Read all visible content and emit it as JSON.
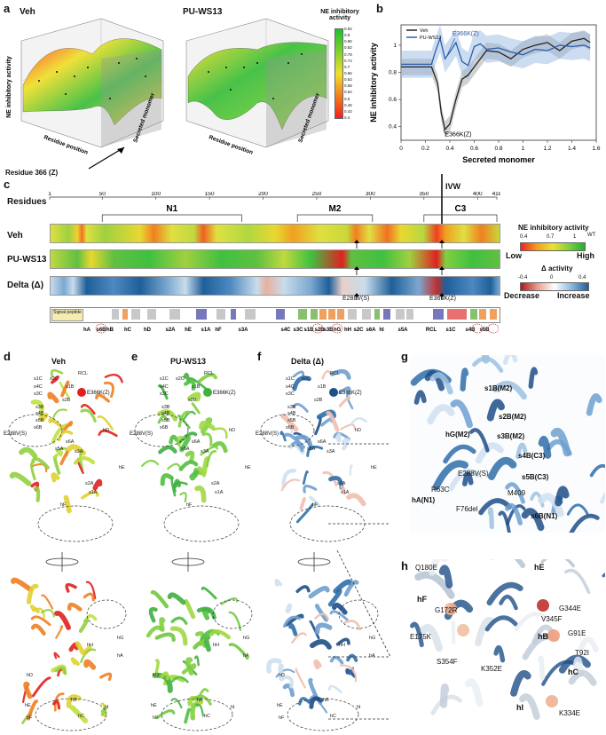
{
  "panels": {
    "a": "a",
    "b": "b",
    "c": "c",
    "d": "d",
    "e": "e",
    "f": "f",
    "g": "g",
    "h": "h"
  },
  "panel_a": {
    "veh_title": "Veh",
    "pu_title": "PU-WS13",
    "colorbar_title": "NE inhibitory activity",
    "colorbar_ticks": [
      "0.94",
      "0.9",
      "0.86",
      "0.82",
      "0.78",
      "0.74",
      "0.7",
      "0.66",
      "0.62",
      "0.58",
      "0.54",
      "0.5",
      "0.46",
      "0.42",
      "0.4"
    ],
    "zlabel": "NE inhibitory activity",
    "xlabel": "Residue position",
    "ylabel": "Secreted monomer",
    "residue_annotation": "Residue 366 (Z)"
  },
  "panel_b": {
    "ylabel": "NE inhibitory activity",
    "xlabel": "Secreted monomer",
    "legend": [
      "Veh",
      "PU-WS13"
    ],
    "annot_top": "E366K(Z)",
    "annot_bottom": "E366K(Z)"
  },
  "chart_data": {
    "type": "line",
    "xlabel": "Secreted monomer",
    "ylabel": "NE inhibitory activity",
    "xlim": [
      0,
      1.6
    ],
    "ylim": [
      0.3,
      1.15
    ],
    "xticks": [
      "0",
      "0.2",
      "0.4",
      "0.6",
      "0.8",
      "1",
      "1.2",
      "1.4",
      "1.6"
    ],
    "yticks": [
      "0.4",
      "0.6",
      "0.8",
      "1"
    ],
    "series": [
      {
        "name": "Veh",
        "color": "#222222",
        "x": [
          0,
          0.05,
          0.1,
          0.15,
          0.2,
          0.25,
          0.3,
          0.33,
          0.36,
          0.4,
          0.45,
          0.5,
          0.55,
          0.6,
          0.65,
          0.7,
          0.8,
          0.9,
          1.0,
          1.1,
          1.2,
          1.3,
          1.4,
          1.5,
          1.55
        ],
        "y": [
          0.84,
          0.84,
          0.84,
          0.84,
          0.84,
          0.84,
          0.72,
          0.5,
          0.38,
          0.42,
          0.6,
          0.75,
          0.78,
          0.84,
          0.9,
          0.96,
          0.95,
          0.9,
          0.97,
          1.0,
          1.02,
          0.96,
          1.03,
          1.05,
          1.02
        ]
      },
      {
        "name": "PU-WS13",
        "color": "#2a5db0",
        "x": [
          0,
          0.05,
          0.1,
          0.15,
          0.2,
          0.25,
          0.28,
          0.32,
          0.36,
          0.4,
          0.45,
          0.5,
          0.55,
          0.6,
          0.65,
          0.7,
          0.8,
          0.9,
          1.0,
          1.1,
          1.2,
          1.3,
          1.4,
          1.5,
          1.55
        ],
        "y": [
          0.86,
          0.86,
          0.86,
          0.86,
          0.86,
          0.86,
          0.95,
          1.05,
          0.9,
          0.95,
          1.02,
          0.88,
          0.85,
          0.99,
          1.01,
          0.97,
          0.98,
          0.95,
          0.93,
          0.97,
          0.96,
          1.0,
          0.99,
          1.0,
          0.98
        ]
      }
    ],
    "grid": false,
    "legend_position": "top-left"
  },
  "panel_c": {
    "residues_label": "Residues",
    "ticks": [
      "1",
      "50",
      "100",
      "150",
      "200",
      "250",
      "300",
      "350",
      "400",
      "418"
    ],
    "domains": [
      "N1",
      "M2",
      "C3"
    ],
    "ivw_label": "IVW",
    "rows": [
      "Veh",
      "PU-WS13",
      "Delta (Δ)"
    ],
    "mut_e288": "E288V(S)",
    "mut_e366": "E366K(Z)",
    "legend1_title": "NE inhibitory activity",
    "legend1_ticks": [
      "0.4",
      "0.7",
      "1"
    ],
    "legend1_wt": "WT",
    "legend1_low": "Low",
    "legend1_high": "High",
    "legend2_title": "Δ activity",
    "legend2_ticks": [
      "-0.4",
      "0",
      "0.4"
    ],
    "legend2_dec": "Decrease",
    "legend2_inc": "Increase",
    "signal": "Signal peptide",
    "ss_labels": [
      "hA",
      "s6B",
      "hB",
      "hC",
      "hD",
      "s2A",
      "hE",
      "s1A",
      "hF",
      "s3A",
      "s4C",
      "s3C",
      "s1B",
      "s2B",
      "s3B",
      "hG",
      "hH",
      "s2C",
      "s6A",
      "hI",
      "s5A",
      "RCL",
      "s1C",
      "s4B",
      "s5B"
    ]
  },
  "panel_d": {
    "title": "Veh",
    "labels": [
      "RCL",
      "s1C",
      "s2C",
      "s4C",
      "s3C",
      "s1B",
      "s2B",
      "s3B",
      "s4B",
      "s5B",
      "s6B",
      "E366K(Z)",
      "E288V(S)",
      "hD",
      "s6A",
      "s5A",
      "s3A",
      "s2A",
      "s1A",
      "hE",
      "hF"
    ],
    "labels_bottom": [
      "hG",
      "hH",
      "hA",
      "hB",
      "hC",
      "hD",
      "hE",
      "hF",
      "hI"
    ]
  },
  "panel_e": {
    "title": "PU-WS13"
  },
  "panel_f": {
    "title": "Delta (Δ)"
  },
  "panel_g": {
    "labels": [
      "s1B(M2)",
      "s2B(M2)",
      "s3B(M2)",
      "hG(M2)",
      "s4B(C3)",
      "s5B(C3)",
      "E288V(S)",
      "M409",
      "R63C",
      "hA(N1)",
      "F76del",
      "s6B(N1)"
    ]
  },
  "panel_h": {
    "labels": [
      "Q180E",
      "hF",
      "G172R",
      "E175K",
      "hE",
      "G344E",
      "V345F",
      "hB",
      "G91E",
      "T92I",
      "S354F",
      "K352E",
      "hC",
      "hI",
      "K334E"
    ]
  },
  "colors": {
    "blue_line": "#2a5db0",
    "black_line": "#222222",
    "green": "#3cb43c",
    "yellow": "#f0e030",
    "red": "#e02020",
    "delta_blue": "#1f5f99"
  }
}
